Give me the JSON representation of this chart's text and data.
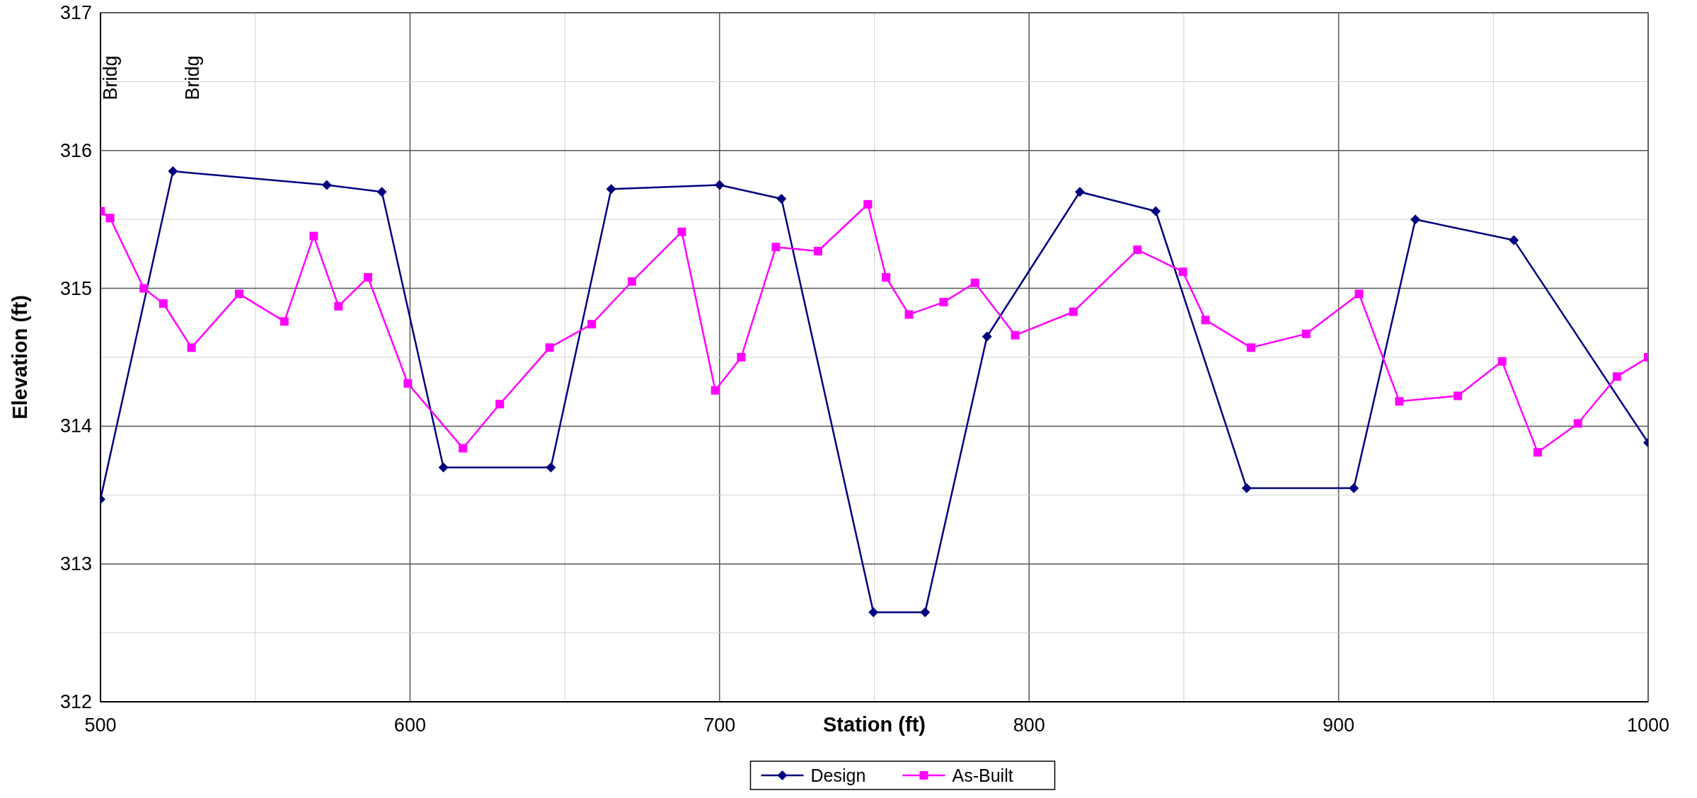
{
  "chart_data": {
    "type": "line",
    "xlabel": "Station (ft)",
    "ylabel": "Elevation (ft)",
    "xlim": [
      500,
      1000
    ],
    "xticks": [
      500,
      {
        "value": 550,
        "label": null
      },
      600,
      {
        "value": 650,
        "label": null
      },
      700,
      {
        "value": 750,
        "label": null
      },
      800,
      {
        "value": 850,
        "label": null
      },
      900,
      {
        "value": 950,
        "label": null
      },
      1000
    ],
    "ylim": [
      312,
      317
    ],
    "yticks": [
      312,
      {
        "value": 312.5,
        "label": null
      },
      313,
      {
        "value": 313.5,
        "label": null
      },
      314,
      {
        "value": 314.5,
        "label": null
      },
      315,
      {
        "value": 315.5,
        "label": null
      },
      316,
      {
        "value": 316.5,
        "label": null
      },
      317
    ],
    "grid": true,
    "legend": "bottom",
    "line_style": "solid",
    "annotations": [
      "Bridg",
      "Bridg"
    ],
    "series": [
      {
        "name": "Design",
        "color": "#000080",
        "marker": "diamond",
        "x": [
          500,
          523.4,
          573.1,
          590.9,
          610.8,
          645.5,
          665,
          700,
          720,
          749.7,
          766.4,
          786.4,
          816.4,
          840.9,
          870.3,
          904.9,
          924.8,
          956.6,
          1000
        ],
        "values": [
          313.47,
          315.85,
          315.75,
          315.7,
          313.7,
          313.7,
          315.72,
          315.75,
          315.65,
          312.65,
          312.65,
          314.65,
          315.7,
          315.56,
          313.55,
          313.55,
          315.5,
          315.35,
          313.88
        ]
      },
      {
        "name": "As-Built",
        "color": "#ff00ff",
        "marker": "square",
        "x": [
          500,
          503.1,
          514,
          520.3,
          529.4,
          544.8,
          559.4,
          568.9,
          576.9,
          586.4,
          599.3,
          617.1,
          629,
          645.1,
          658.7,
          671.7,
          687.8,
          698.6,
          707,
          718.2,
          731.8,
          747.9,
          753.8,
          761.2,
          772.4,
          782.5,
          795.5,
          814.3,
          835,
          849.7,
          857,
          871.7,
          889.5,
          906.6,
          919.6,
          938.5,
          952.8,
          964.3,
          977.3,
          989.9,
          1000
        ],
        "values": [
          315.56,
          315.51,
          315.0,
          314.89,
          314.57,
          314.96,
          314.76,
          315.38,
          314.87,
          315.08,
          314.31,
          313.84,
          314.16,
          314.57,
          314.74,
          315.05,
          315.41,
          314.26,
          314.5,
          315.3,
          315.27,
          315.61,
          315.08,
          314.81,
          314.9,
          315.04,
          314.66,
          314.83,
          315.28,
          315.12,
          314.77,
          314.57,
          314.67,
          314.96,
          314.18,
          314.22,
          314.47,
          313.81,
          314.02,
          314.36,
          314.5
        ]
      }
    ]
  }
}
